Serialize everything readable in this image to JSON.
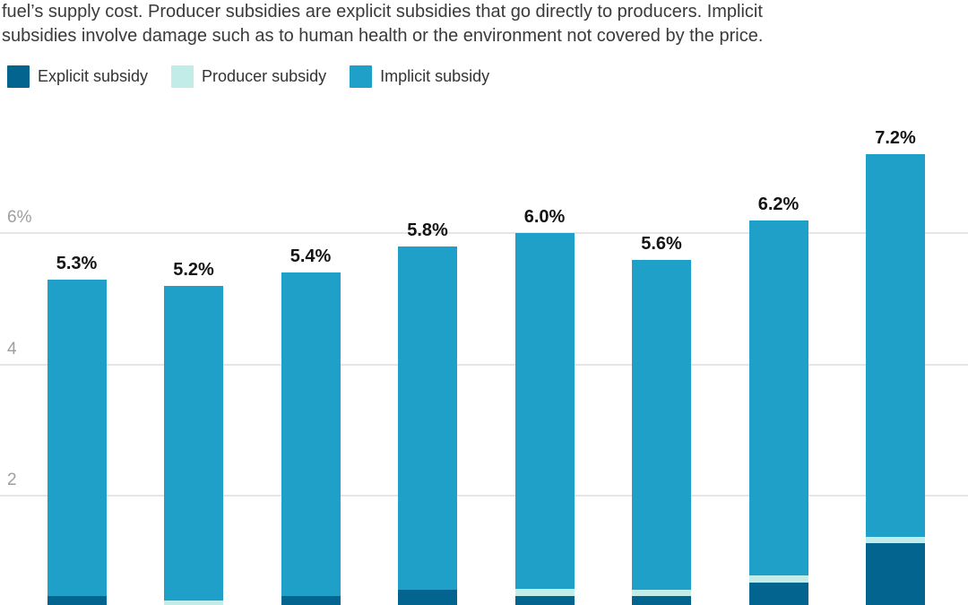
{
  "intro": {
    "line1": "fuel’s supply cost. Producer subsidies are explicit subsidies that go directly to producers. Implicit",
    "line2": "subsidies involve damage such as to human health or the environment not covered by the price."
  },
  "legend": {
    "items": [
      {
        "name": "explicit-subsidy",
        "label": "Explicit subsidy",
        "color": "#02648F"
      },
      {
        "name": "producer-subsidy",
        "label": "Producer subsidy",
        "color": "#C1ECE8"
      },
      {
        "name": "implicit-subsidy",
        "label": "Implicit subsidy",
        "color": "#1EA0C9"
      }
    ]
  },
  "chart_data": {
    "type": "bar",
    "stacked": true,
    "unit": "percent",
    "grid": "horizontal",
    "legend_position": "top-left",
    "x_axis_labels_visible": false,
    "series_names": [
      "Explicit subsidy",
      "Producer subsidy",
      "Implicit subsidy"
    ],
    "y_axis": {
      "ticks": [
        {
          "label": "6%",
          "value": 6
        },
        {
          "label": "4",
          "value": 4
        },
        {
          "label": "2",
          "value": 2
        }
      ],
      "visible_range": [
        0.33,
        7.6
      ]
    },
    "bars": [
      {
        "value_label": "5.3%",
        "total": 5.3,
        "explicit": 0.47,
        "producer": 0.0,
        "implicit": 4.83
      },
      {
        "value_label": "5.2%",
        "total": 5.2,
        "explicit": 0.3,
        "producer": 0.1,
        "implicit": 4.8
      },
      {
        "value_label": "5.4%",
        "total": 5.4,
        "explicit": 0.47,
        "producer": 0.0,
        "implicit": 4.93
      },
      {
        "value_label": "5.8%",
        "total": 5.8,
        "explicit": 0.57,
        "producer": 0.0,
        "implicit": 5.23
      },
      {
        "value_label": "6.0%",
        "total": 6.0,
        "explicit": 0.47,
        "producer": 0.11,
        "implicit": 5.42
      },
      {
        "value_label": "5.6%",
        "total": 5.6,
        "explicit": 0.47,
        "producer": 0.1,
        "implicit": 5.03
      },
      {
        "value_label": "6.2%",
        "total": 6.2,
        "explicit": 0.68,
        "producer": 0.1,
        "implicit": 5.42
      },
      {
        "value_label": "7.2%",
        "total": 7.2,
        "explicit": 1.28,
        "producer": 0.09,
        "implicit": 5.83
      }
    ]
  },
  "colors": {
    "background": "#FFFFFF",
    "gridline": "#E5E5E5",
    "axis_label": "#9E9E9E",
    "body_text": "#3A3A3A",
    "value_label": "#141414"
  }
}
